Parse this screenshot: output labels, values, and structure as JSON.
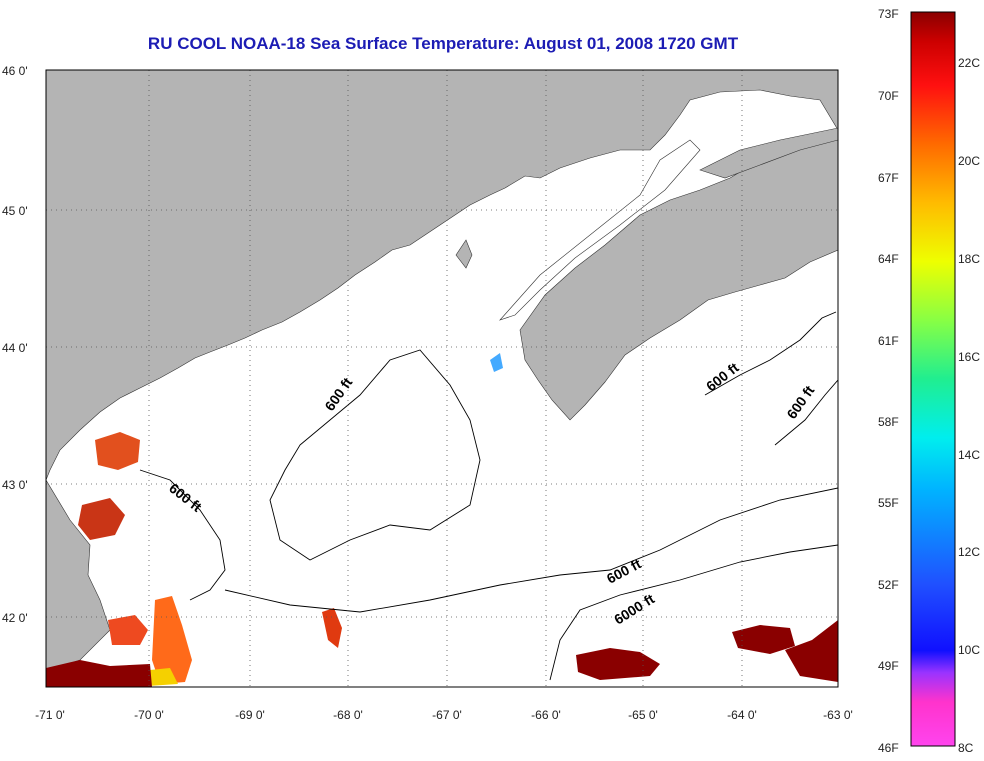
{
  "title": "RU COOL  NOAA-18  Sea Surface Temperature:  August 01, 2008 1720 GMT",
  "map": {
    "lon_ticks": [
      "-71 0'",
      "-70 0'",
      "-69 0'",
      "-68 0'",
      "-67 0'",
      "-66 0'",
      "-65 0'",
      "-64 0'",
      "-63 0'"
    ],
    "lat_ticks": [
      "46 0'",
      "45 0'",
      "44 0'",
      "43 0'",
      "42 0'"
    ],
    "lon_range": [
      -71,
      -63
    ],
    "lat_range": [
      41.5,
      46.0
    ],
    "contour_labels": [
      "600 ft",
      "600 ft",
      "600 ft",
      "600 ft",
      "600 ft",
      "6000 ft"
    ],
    "land_color": "#b4b4b4",
    "no_data_color": "#ffffff"
  },
  "colorbar": {
    "fahrenheit_labels": [
      "73F",
      "70F",
      "67F",
      "64F",
      "61F",
      "58F",
      "55F",
      "52F",
      "49F",
      "46F"
    ],
    "celsius_labels": [
      "22C",
      "20C",
      "18C",
      "16C",
      "14C",
      "12C",
      "10C",
      "8C"
    ],
    "range_f": [
      46,
      73
    ],
    "range_c": [
      8,
      23
    ]
  }
}
